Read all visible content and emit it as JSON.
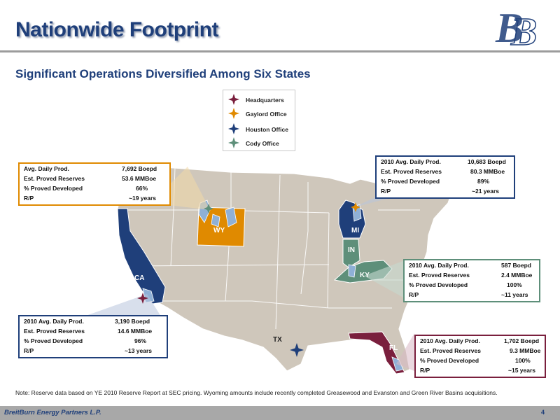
{
  "title": "Nationwide Footprint",
  "subtitle": "Significant Operations Diversified Among Six States",
  "logo": {
    "icon": "breitburn-bb-monogram"
  },
  "legend": [
    {
      "label": "Headquarters",
      "color": "#7a1f3d",
      "icon": "star-marker"
    },
    {
      "label": "Gaylord Office",
      "color": "#e08a00",
      "icon": "star-marker"
    },
    {
      "label": "Houston Office",
      "color": "#1f3f7a",
      "icon": "star-marker"
    },
    {
      "label": "Cody Office",
      "color": "#5e8f7a",
      "icon": "star-marker"
    }
  ],
  "states": [
    {
      "abbr": "CA",
      "color": "#1f3f7a"
    },
    {
      "abbr": "WY",
      "color": "#e08a00"
    },
    {
      "abbr": "MI",
      "color": "#1f3f7a"
    },
    {
      "abbr": "IN",
      "color": "#5e8f7a"
    },
    {
      "abbr": "KY",
      "color": "#5e8f7a"
    },
    {
      "abbr": "FL",
      "color": "#7a1f3d"
    },
    {
      "abbr": "TX",
      "color": "#c8c0b4"
    }
  ],
  "callouts": {
    "wy": {
      "border": "#e08a00",
      "rows": [
        {
          "k": "Avg. Daily Prod.",
          "v": "7,692 Boepd"
        },
        {
          "k": "Est. Proved Reserves",
          "v": "53.6 MMBoe"
        },
        {
          "k": "% Proved Developed",
          "v": "66%"
        },
        {
          "k": "R/P",
          "v": "~19 years"
        }
      ]
    },
    "mi": {
      "border": "#1f3f7a",
      "rows": [
        {
          "k": "2010 Avg. Daily Prod.",
          "v": "10,683 Boepd"
        },
        {
          "k": "Est. Proved Reserves",
          "v": "80.3 MMBoe"
        },
        {
          "k": "% Proved Developed",
          "v": "89%"
        },
        {
          "k": "R/P",
          "v": "~21 years"
        }
      ]
    },
    "ky": {
      "border": "#5e8f7a",
      "rows": [
        {
          "k": "2010 Avg. Daily Prod.",
          "v": "587 Boepd"
        },
        {
          "k": "Est. Proved Reserves",
          "v": "2.4 MMBoe"
        },
        {
          "k": "% Proved Developed",
          "v": "100%"
        },
        {
          "k": "R/P",
          "v": "~11 years"
        }
      ]
    },
    "ca": {
      "border": "#1f3f7a",
      "rows": [
        {
          "k": "2010 Avg. Daily Prod.",
          "v": "3,190 Boepd"
        },
        {
          "k": "Est. Proved Reserves",
          "v": "14.6 MMBoe"
        },
        {
          "k": "% Proved Developed",
          "v": "96%"
        },
        {
          "k": "R/P",
          "v": "~13 years"
        }
      ]
    },
    "fl": {
      "border": "#7a1f3d",
      "rows": [
        {
          "k": "2010 Avg. Daily Prod.",
          "v": "1,702 Boepd"
        },
        {
          "k": "Est. Proved Reserves",
          "v": "9.3 MMBoe"
        },
        {
          "k": "% Proved Developed",
          "v": "100%"
        },
        {
          "k": "R/P",
          "v": "~15 years"
        }
      ]
    }
  },
  "note": "Note:  Reserve data based on YE 2010 Reserve Report at SEC pricing.  Wyoming amounts include recently completed Greasewood and Evanston and Green River Basins acquisitions.",
  "footer": {
    "company": "BreitBurn Energy Partners L.P.",
    "page": "4"
  }
}
